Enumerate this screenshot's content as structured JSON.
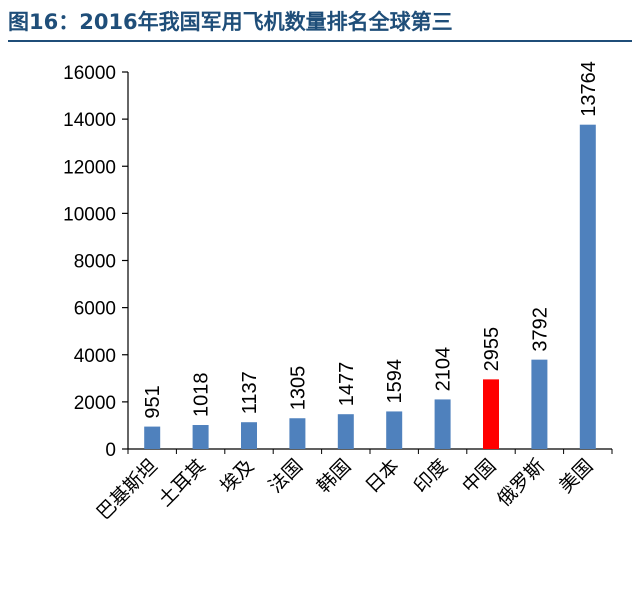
{
  "figure": {
    "title": "图16：2016年我国军用飞机数量排名全球第三"
  },
  "chart_data": {
    "type": "bar",
    "categories": [
      "巴基斯坦",
      "土耳其",
      "埃及",
      "法国",
      "韩国",
      "日本",
      "印度",
      "中国",
      "俄罗斯",
      "美国"
    ],
    "values": [
      951,
      1018,
      1137,
      1305,
      1477,
      1594,
      2104,
      2955,
      3792,
      13764
    ],
    "colors": [
      "#4f81bd",
      "#4f81bd",
      "#4f81bd",
      "#4f81bd",
      "#4f81bd",
      "#4f81bd",
      "#4f81bd",
      "#ff0000",
      "#4f81bd",
      "#4f81bd"
    ],
    "ylim": [
      0,
      16000
    ],
    "yticks": [
      0,
      2000,
      4000,
      6000,
      8000,
      10000,
      12000,
      14000,
      16000
    ],
    "data_labels": true,
    "grid": false,
    "legend": false
  }
}
